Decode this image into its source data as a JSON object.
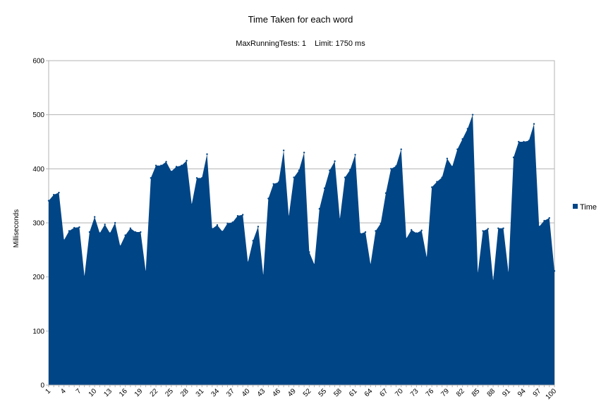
{
  "chart_data": {
    "type": "area",
    "title": "Time Taken for each word",
    "subtitle": "MaxRunningTests: 1    Limit: 1750 ms",
    "xlabel": "",
    "ylabel": "Milliseconds",
    "ylim": [
      0,
      600
    ],
    "yticks": [
      0,
      100,
      200,
      300,
      400,
      500,
      600
    ],
    "xtick_labels": [
      1,
      4,
      7,
      10,
      13,
      16,
      19,
      22,
      25,
      28,
      31,
      34,
      37,
      40,
      43,
      46,
      49,
      52,
      55,
      58,
      61,
      64,
      67,
      70,
      73,
      76,
      79,
      82,
      85,
      88,
      91,
      94,
      97,
      100
    ],
    "grid": true,
    "legend_position": "right",
    "series": [
      {
        "name": "Time",
        "color": "#004586",
        "x": [
          1,
          2,
          3,
          4,
          5,
          6,
          7,
          8,
          9,
          10,
          11,
          12,
          13,
          14,
          15,
          16,
          17,
          18,
          19,
          20,
          21,
          22,
          23,
          24,
          25,
          26,
          27,
          28,
          29,
          30,
          31,
          32,
          33,
          34,
          35,
          36,
          37,
          38,
          39,
          40,
          41,
          42,
          43,
          44,
          45,
          46,
          47,
          48,
          49,
          50,
          51,
          52,
          53,
          54,
          55,
          56,
          57,
          58,
          59,
          60,
          61,
          62,
          63,
          64,
          65,
          66,
          67,
          68,
          69,
          70,
          71,
          72,
          73,
          74,
          75,
          76,
          77,
          78,
          79,
          80,
          81,
          82,
          83,
          84,
          85,
          86,
          87,
          88,
          89,
          90,
          91,
          92,
          93,
          94,
          95,
          96,
          97,
          98,
          99,
          100
        ],
        "values": [
          341,
          352,
          356,
          268,
          285,
          291,
          292,
          201,
          283,
          311,
          281,
          297,
          281,
          300,
          257,
          277,
          290,
          283,
          283,
          210,
          383,
          406,
          406,
          413,
          395,
          404,
          406,
          415,
          334,
          383,
          383,
          427,
          289,
          296,
          284,
          299,
          301,
          313,
          315,
          227,
          267,
          293,
          203,
          345,
          372,
          375,
          434,
          312,
          384,
          397,
          430,
          246,
          223,
          326,
          364,
          397,
          414,
          307,
          384,
          398,
          426,
          280,
          283,
          223,
          285,
          299,
          355,
          400,
          405,
          436,
          271,
          287,
          281,
          286,
          236,
          366,
          376,
          384,
          419,
          404,
          436,
          455,
          474,
          500,
          207,
          285,
          289,
          193,
          290,
          290,
          208,
          421,
          450,
          450,
          452,
          483,
          293,
          304,
          309,
          211
        ]
      }
    ]
  }
}
